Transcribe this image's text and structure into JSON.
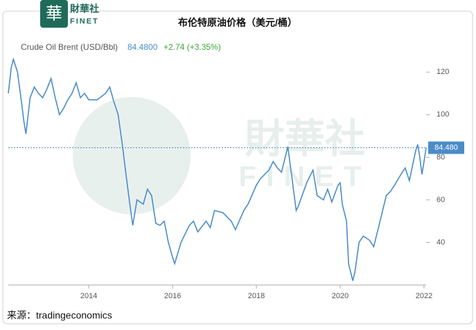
{
  "logo": {
    "cn": "財華社",
    "en": "FINET"
  },
  "chart_data": {
    "type": "line",
    "title": "布伦特原油价格（美元/桶）",
    "header": {
      "name": "Crude Oil Brent (USD/Bbl)",
      "price": "84.4800",
      "change": "+2.74 (+3.35%)"
    },
    "last_label": "84.480",
    "source": "来源：tradingeconomics",
    "x": [
      2012.08,
      2012.15,
      2012.2,
      2012.3,
      2012.4,
      2012.45,
      2012.5,
      2012.6,
      2012.7,
      2012.8,
      2012.9,
      2013.0,
      2013.1,
      2013.2,
      2013.3,
      2013.4,
      2013.5,
      2013.6,
      2013.7,
      2013.8,
      2013.9,
      2014.0,
      2014.2,
      2014.4,
      2014.5,
      2014.6,
      2014.7,
      2014.8,
      2014.9,
      2015.0,
      2015.05,
      2015.15,
      2015.3,
      2015.4,
      2015.5,
      2015.6,
      2015.7,
      2015.8,
      2015.9,
      2016.0,
      2016.05,
      2016.2,
      2016.4,
      2016.5,
      2016.6,
      2016.8,
      2016.9,
      2017.0,
      2017.2,
      2017.4,
      2017.5,
      2017.7,
      2017.8,
      2018.0,
      2018.1,
      2018.3,
      2018.4,
      2018.5,
      2018.6,
      2018.75,
      2018.85,
      2018.95,
      2019.0,
      2019.2,
      2019.35,
      2019.45,
      2019.6,
      2019.7,
      2019.8,
      2019.95,
      2020.0,
      2020.05,
      2020.15,
      2020.2,
      2020.3,
      2020.35,
      2020.45,
      2020.55,
      2020.7,
      2020.8,
      2020.95,
      2021.1,
      2021.2,
      2021.3,
      2021.45,
      2021.55,
      2021.65,
      2021.8,
      2021.85,
      2021.9,
      2021.95,
      2022.0,
      2022.05
    ],
    "series": [
      {
        "name": "Crude Oil Brent (USD/Bbl)",
        "color": "#4a8cc9",
        "values": [
          110,
          122,
          126,
          120,
          105,
          97,
          91,
          108,
          113,
          110,
          108,
          112,
          117,
          108,
          100,
          103,
          107,
          110,
          115,
          108,
          110,
          107,
          107,
          110,
          113,
          106,
          100,
          86,
          70,
          55,
          48,
          60,
          58,
          65,
          62,
          49,
          48,
          50,
          40,
          33,
          30,
          40,
          48,
          50,
          45,
          50,
          47,
          55,
          54,
          50,
          46,
          55,
          58,
          67,
          70,
          74,
          78,
          75,
          73,
          85,
          70,
          55,
          57,
          68,
          74,
          62,
          60,
          65,
          59,
          67,
          68,
          58,
          50,
          30,
          22,
          26,
          40,
          43,
          41,
          38,
          50,
          62,
          64,
          67,
          72,
          75,
          69,
          83,
          86,
          80,
          72,
          78,
          84.48
        ]
      }
    ],
    "xlim": [
      2012.08,
      2022.05
    ],
    "xticks": [
      2014,
      2016,
      2018,
      2020,
      2022
    ],
    "ylim": [
      20,
      136
    ],
    "yticks": [
      40,
      60,
      80,
      100,
      120
    ]
  }
}
